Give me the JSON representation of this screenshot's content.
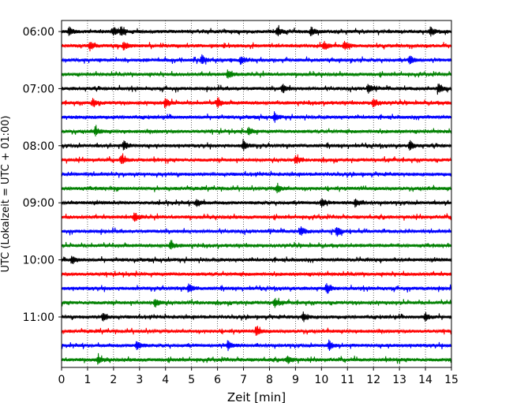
{
  "chart_data": {
    "type": "line",
    "xlabel": "Zeit  [min]",
    "ylabel": "UTC (Lokalzeit = UTC + 01:00)",
    "xlim": [
      0,
      15
    ],
    "x_ticks": [
      "0",
      "1",
      "2",
      "3",
      "4",
      "5",
      "6",
      "7",
      "8",
      "9",
      "10",
      "11",
      "12",
      "13",
      "14",
      "15"
    ],
    "y_tick_labels": [
      "06:00",
      "07:00",
      "08:00",
      "09:00",
      "10:00",
      "11:00"
    ],
    "grid": "vertical dotted lines at each minute",
    "trace_colors": [
      "#000000",
      "#ff0000",
      "#0000ff",
      "#008000"
    ],
    "trace_count": 24,
    "trace_interval_minutes": 15,
    "series": [
      {
        "start": "06:00",
        "events_min": [
          0.3,
          2.0,
          2.3,
          8.3,
          9.6,
          14.2
        ]
      },
      {
        "start": "06:15",
        "events_min": [
          1.1,
          2.4,
          10.1,
          10.9
        ]
      },
      {
        "start": "06:30",
        "events_min": [
          5.4,
          6.9,
          13.4
        ]
      },
      {
        "start": "06:45",
        "events_min": [
          6.4
        ]
      },
      {
        "start": "07:00",
        "events_min": [
          8.5,
          11.8,
          14.5
        ]
      },
      {
        "start": "07:15",
        "events_min": [
          1.2,
          4.0,
          6.0,
          12.0
        ]
      },
      {
        "start": "07:30",
        "events_min": [
          8.2
        ]
      },
      {
        "start": "07:45",
        "events_min": [
          1.3,
          7.2
        ]
      },
      {
        "start": "08:00",
        "events_min": [
          2.4,
          7.0,
          13.4
        ]
      },
      {
        "start": "08:15",
        "events_min": [
          2.3,
          9.0
        ]
      },
      {
        "start": "08:30",
        "events_min": []
      },
      {
        "start": "08:45",
        "events_min": [
          8.3
        ]
      },
      {
        "start": "09:00",
        "events_min": [
          5.2,
          10.0,
          11.3
        ]
      },
      {
        "start": "09:15",
        "events_min": [
          2.8
        ]
      },
      {
        "start": "09:30",
        "events_min": [
          9.2,
          10.6
        ]
      },
      {
        "start": "09:45",
        "events_min": [
          4.2
        ]
      },
      {
        "start": "10:00",
        "events_min": [
          0.4
        ]
      },
      {
        "start": "10:15",
        "events_min": []
      },
      {
        "start": "10:30",
        "events_min": [
          4.9,
          10.2
        ]
      },
      {
        "start": "10:45",
        "events_min": [
          3.6,
          8.2
        ]
      },
      {
        "start": "11:00",
        "events_min": [
          1.6,
          9.3,
          14.0
        ]
      },
      {
        "start": "11:15",
        "events_min": [
          7.5
        ]
      },
      {
        "start": "11:30",
        "events_min": [
          2.9,
          6.4,
          10.3
        ]
      },
      {
        "start": "11:45",
        "events_min": [
          1.4,
          8.7
        ]
      }
    ]
  }
}
